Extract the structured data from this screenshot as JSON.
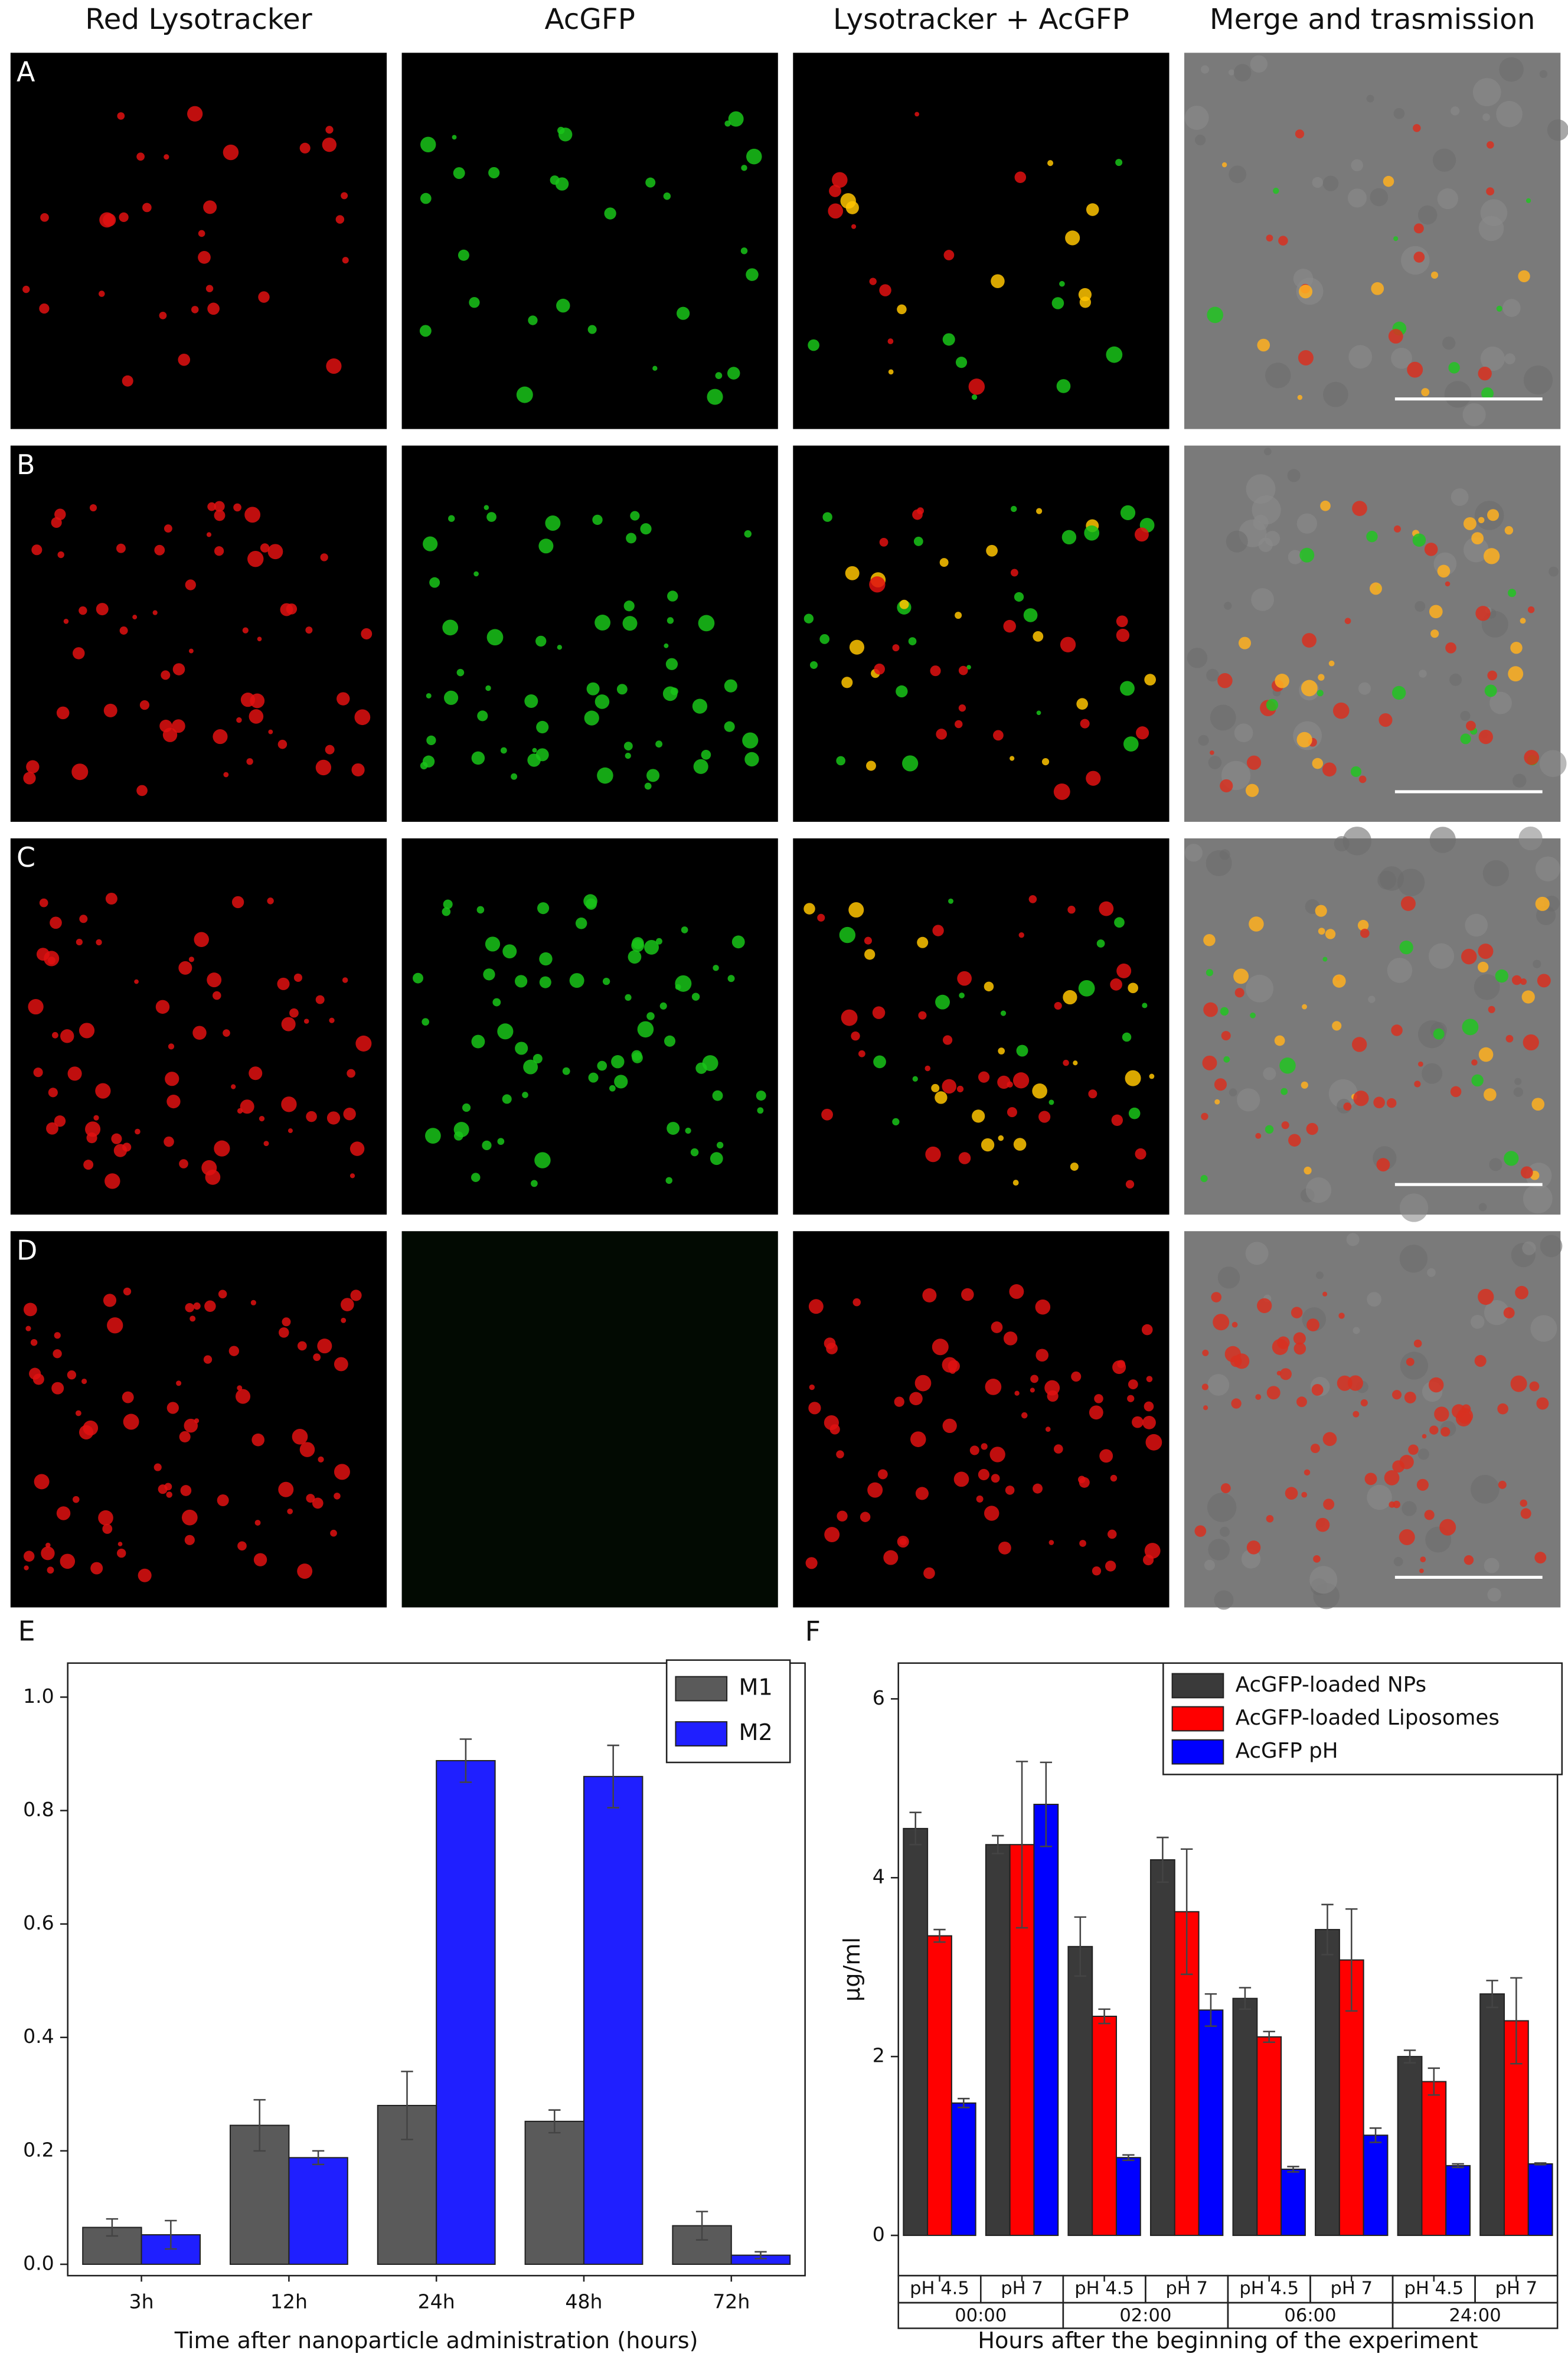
{
  "microscopy": {
    "columns": [
      "Red Lysotracker",
      "AcGFP",
      "Lysotracker + AcGFP",
      "Merge and trasmission"
    ],
    "rows": [
      "A",
      "B",
      "C",
      "D"
    ]
  },
  "chart_data": [
    {
      "type": "bar",
      "panel_label": "E",
      "xlabel": "Time after nanoparticle administration (hours)",
      "categories": [
        "3h",
        "12h",
        "24h",
        "48h",
        "72h"
      ],
      "series": [
        {
          "name": "M1",
          "color": "#5a5a5a",
          "values": [
            0.065,
            0.245,
            0.28,
            0.252,
            0.068
          ],
          "errors": [
            0.015,
            0.045,
            0.06,
            0.02,
            0.025
          ]
        },
        {
          "name": "M2",
          "color": "#1f1fff",
          "values": [
            0.052,
            0.188,
            0.888,
            0.86,
            0.016
          ],
          "errors": [
            0.025,
            0.012,
            0.038,
            0.055,
            0.006
          ]
        }
      ],
      "ylim": [
        -0.02,
        1.06
      ],
      "yticks": [
        {
          "value": 0,
          "label": "0.0"
        },
        {
          "value": 0.2,
          "label": "0.2"
        },
        {
          "value": 0.4,
          "label": "0.4"
        },
        {
          "value": 0.6,
          "label": "0.6"
        },
        {
          "value": 0.8,
          "label": "0.8"
        },
        {
          "value": 1,
          "label": "1.0"
        }
      ],
      "legend": "top-right"
    },
    {
      "type": "bar",
      "panel_label": "F",
      "xlabel": "Hours after the beginning of the experiment",
      "ylabel": "μg/ml",
      "categories": [
        "pH 4.5",
        "pH 7",
        "pH 4.5",
        "pH 7",
        "pH 4.5",
        "pH 7",
        "pH 4.5",
        "pH 7"
      ],
      "groups": [
        "00:00",
        "02:00",
        "06:00",
        "24:00"
      ],
      "series": [
        {
          "name": "AcGFP-loaded NPs",
          "color": "#3a3a3a",
          "values": [
            4.55,
            4.37,
            3.23,
            4.2,
            2.65,
            3.42,
            2.0,
            2.7
          ],
          "errors": [
            0.18,
            0.1,
            0.33,
            0.25,
            0.12,
            0.28,
            0.07,
            0.15
          ]
        },
        {
          "name": "AcGFP-loaded Liposomes",
          "color": "#ff0000",
          "values": [
            3.35,
            4.37,
            2.45,
            3.62,
            2.22,
            3.08,
            1.72,
            2.4
          ],
          "errors": [
            0.07,
            0.93,
            0.08,
            0.7,
            0.06,
            0.57,
            0.15,
            0.48
          ]
        },
        {
          "name": "AcGFP pH",
          "color": "#0000ff",
          "values": [
            1.48,
            4.82,
            0.87,
            2.52,
            0.74,
            1.12,
            0.78,
            0.8
          ],
          "errors": [
            0.05,
            0.47,
            0.03,
            0.18,
            0.03,
            0.08,
            0.02,
            0.01
          ]
        }
      ],
      "ylim": [
        -0.45,
        6.4
      ],
      "yticks": [
        0,
        2,
        4,
        6
      ],
      "legend": "top-right"
    }
  ]
}
